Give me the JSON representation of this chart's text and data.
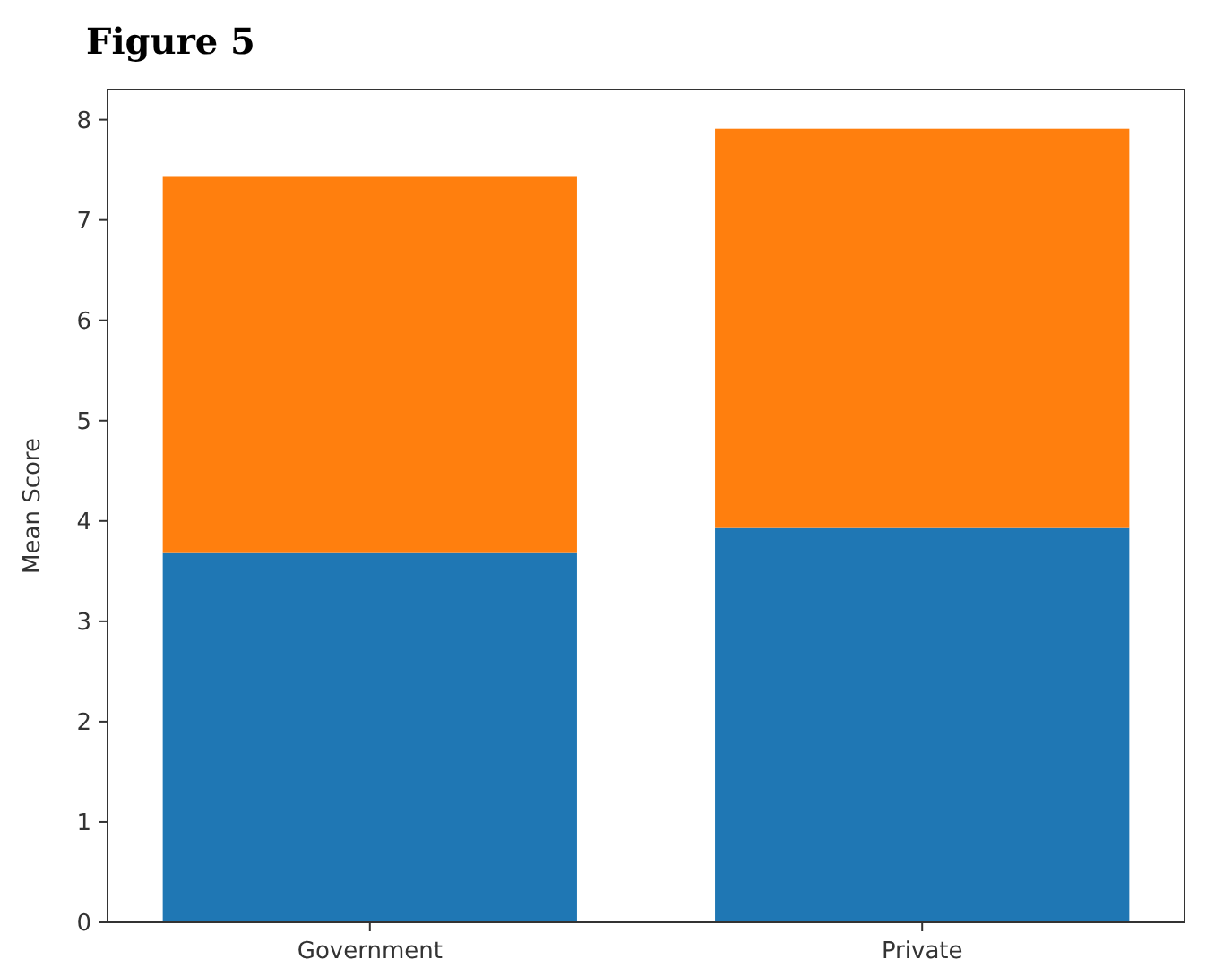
{
  "chart_data": {
    "type": "bar",
    "title": "Figure 5",
    "ylabel": "Mean Score",
    "categories": [
      "Government",
      "Private"
    ],
    "stacked": true,
    "series": [
      {
        "color": "#1f77b4",
        "values": [
          3.68,
          3.93
        ]
      },
      {
        "color": "#ff7f0e",
        "values": [
          3.75,
          3.98
        ]
      }
    ],
    "ylim": [
      0,
      8.3
    ],
    "yticks": [
      0,
      1,
      2,
      3,
      4,
      5,
      6,
      7,
      8
    ],
    "grid": false
  }
}
